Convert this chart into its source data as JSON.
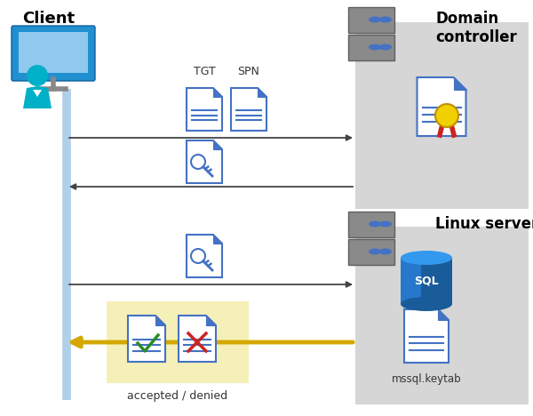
{
  "bg_color": "#ffffff",
  "client_label": "Client",
  "domain_label": "Domain\ncontroller",
  "linux_label": "Linux server",
  "accepted_denied_label": "accepted / denied",
  "mssql_label": "mssql.keytab",
  "tgt_label": "TGT",
  "spn_label": "SPN",
  "gray_box_color": "#d6d6d6",
  "blue_line_color": "#b0cfe8",
  "arrow_color_gray": "#444444",
  "arrow_color_yellow": "#d4a800",
  "yellow_box_color": "#f5f0b8",
  "doc_blue": "#4472c4",
  "sql_dark": "#1a5b9a",
  "sql_mid": "#2778cc",
  "sql_light": "#3399ee",
  "check_green": "#2a8c2a",
  "cross_red": "#cc2222",
  "server_body": "#8a8a8a",
  "server_dark": "#606060",
  "server_btn": "#4472c4",
  "person_teal": "#00b0c8",
  "monitor_blue": "#2090d0",
  "monitor_light": "#90c8f0"
}
